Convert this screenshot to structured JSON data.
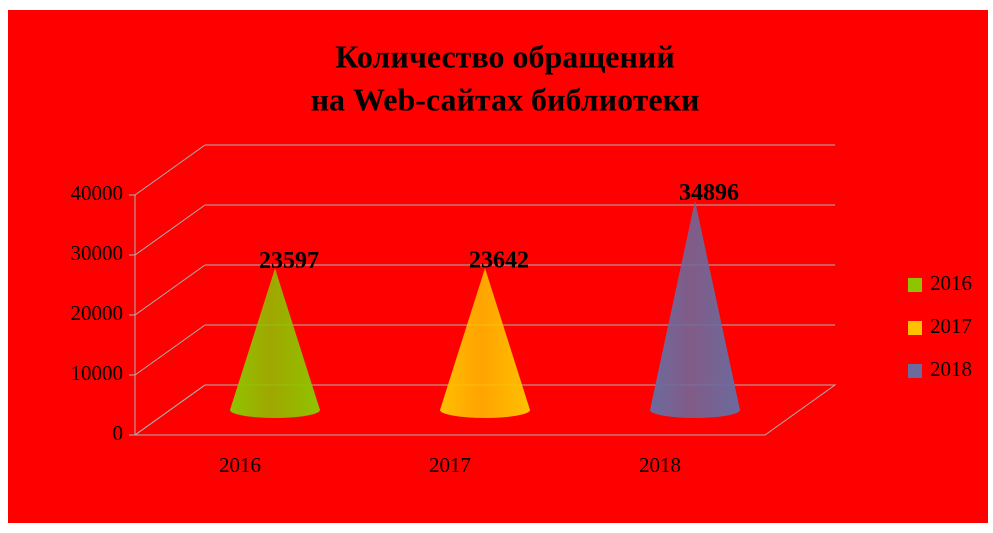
{
  "chart_data": {
    "type": "cone",
    "title": [
      "Количество обращений",
      "на Web-сайтах библиотеки"
    ],
    "categories": [
      "2016",
      "2017",
      "2018"
    ],
    "series": [
      {
        "name": "2016",
        "color": "#8fc400",
        "values": [
          23597,
          null,
          null
        ]
      },
      {
        "name": "2017",
        "color": "#ffc000",
        "values": [
          null,
          23642,
          null
        ]
      },
      {
        "name": "2018",
        "color": "#6b6b9e",
        "values": [
          null,
          null,
          34896
        ]
      }
    ],
    "ylim": [
      0,
      40000
    ],
    "yticks": [
      0,
      10000,
      20000,
      30000,
      40000
    ],
    "grid": true,
    "legend": "right",
    "background": "#ff0000"
  }
}
